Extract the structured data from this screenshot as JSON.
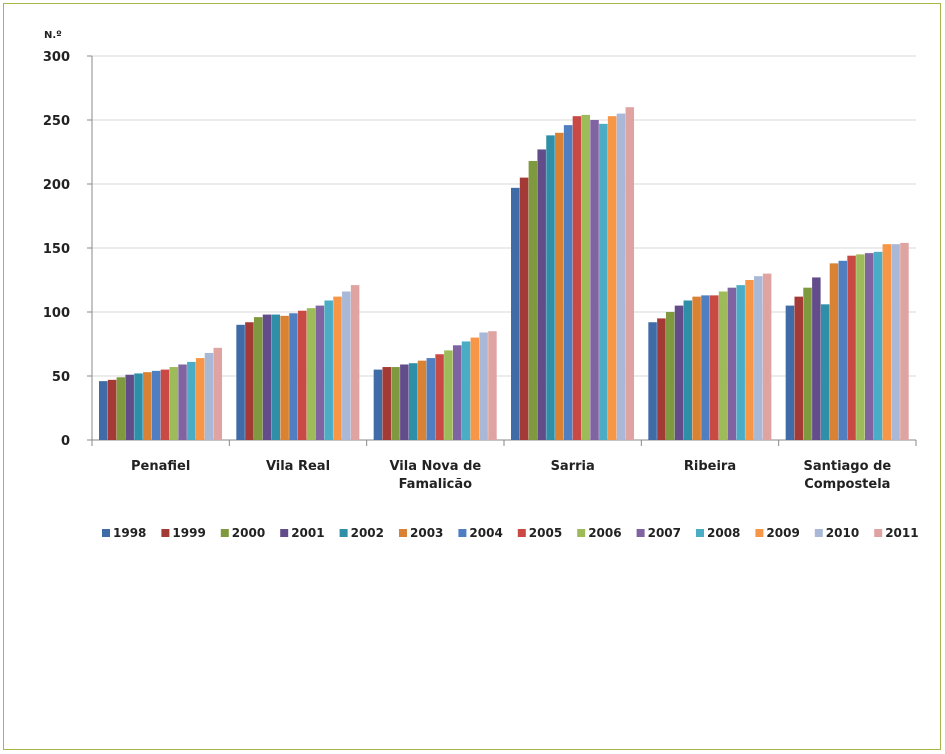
{
  "chart_data": {
    "type": "bar",
    "title": "",
    "y_unit_label": "N.º",
    "ylim": [
      0,
      300
    ],
    "yticks": [
      0,
      50,
      100,
      150,
      200,
      250,
      300
    ],
    "grid": true,
    "legend_placement": "bottom",
    "categories": [
      [
        "Penafiel"
      ],
      [
        "Vila Real"
      ],
      [
        "Vila Nova de",
        "Famalicão"
      ],
      [
        "Sarria"
      ],
      [
        "Ribeira"
      ],
      [
        "Santiago de",
        "Compostela"
      ]
    ],
    "series": [
      {
        "name": "1998",
        "color": "#3f6ba6",
        "values": [
          46,
          90,
          55,
          197,
          92,
          105
        ]
      },
      {
        "name": "1999",
        "color": "#a33a35",
        "values": [
          47,
          92,
          57,
          205,
          95,
          112
        ]
      },
      {
        "name": "2000",
        "color": "#7f9a3e",
        "values": [
          49,
          96,
          57,
          218,
          100,
          119
        ]
      },
      {
        "name": "2001",
        "color": "#634c8a",
        "values": [
          51,
          98,
          59,
          227,
          105,
          127
        ]
      },
      {
        "name": "2002",
        "color": "#2f8fa8",
        "values": [
          52,
          98,
          60,
          238,
          109,
          106
        ]
      },
      {
        "name": "2003",
        "color": "#d98233",
        "values": [
          53,
          97,
          62,
          240,
          112,
          138
        ]
      },
      {
        "name": "2004",
        "color": "#4f7fc0",
        "values": [
          54,
          99,
          64,
          246,
          113,
          140
        ]
      },
      {
        "name": "2005",
        "color": "#c94a45",
        "values": [
          55,
          101,
          67,
          253,
          113,
          144
        ]
      },
      {
        "name": "2006",
        "color": "#9dbb58",
        "values": [
          57,
          103,
          70,
          254,
          116,
          145
        ]
      },
      {
        "name": "2007",
        "color": "#8064a2",
        "values": [
          59,
          105,
          74,
          250,
          119,
          146
        ]
      },
      {
        "name": "2008",
        "color": "#4bacc6",
        "values": [
          61,
          109,
          77,
          247,
          121,
          147
        ]
      },
      {
        "name": "2009",
        "color": "#f79646",
        "values": [
          64,
          112,
          80,
          253,
          125,
          153
        ]
      },
      {
        "name": "2010",
        "color": "#a9b8d6",
        "values": [
          68,
          116,
          84,
          255,
          128,
          153
        ]
      },
      {
        "name": "2011",
        "color": "#dfa4a2",
        "values": [
          72,
          121,
          85,
          260,
          130,
          154
        ]
      }
    ]
  }
}
